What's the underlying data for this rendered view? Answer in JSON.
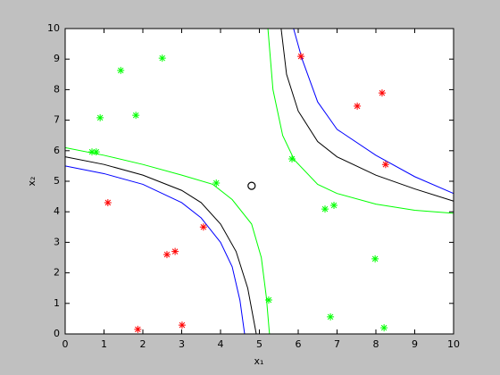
{
  "chart_data": {
    "type": "scatter",
    "xlabel": "x₁",
    "ylabel": "x₂",
    "xlim": [
      0,
      10
    ],
    "ylim": [
      0,
      10
    ],
    "xticks": [
      0,
      1,
      2,
      3,
      4,
      5,
      6,
      7,
      8,
      9,
      10
    ],
    "yticks": [
      0,
      1,
      2,
      3,
      4,
      5,
      6,
      7,
      8,
      9,
      10
    ],
    "grid": false,
    "series": [
      {
        "kind": "line",
        "color": "#000000",
        "x": [
          0,
          1,
          2,
          3,
          3.5,
          4,
          4.4,
          4.7,
          4.92,
          null,
          5.56,
          5.7,
          6,
          6.5,
          7,
          8,
          9,
          10
        ],
        "values": [
          5.8,
          5.55,
          5.2,
          4.7,
          4.3,
          3.6,
          2.7,
          1.5,
          0,
          null,
          10,
          8.5,
          7.3,
          6.3,
          5.8,
          5.2,
          4.75,
          4.35
        ]
      },
      {
        "kind": "line",
        "color": "#0000ff",
        "x": [
          0,
          1,
          2,
          3,
          3.5,
          4,
          4.3,
          4.5,
          4.62,
          null,
          5.88,
          6.1,
          6.5,
          7,
          8,
          9,
          10
        ],
        "values": [
          5.5,
          5.25,
          4.9,
          4.3,
          3.8,
          3.0,
          2.2,
          1.1,
          0,
          null,
          10,
          9,
          7.6,
          6.7,
          5.85,
          5.15,
          4.6
        ]
      },
      {
        "kind": "line",
        "color": "#00ff00",
        "x": [
          0,
          1,
          2,
          3,
          3.8,
          4.3,
          4.8,
          5.05,
          5.18,
          5.26,
          null,
          5.22,
          5.35,
          5.6,
          5.9,
          6.5,
          7,
          8,
          9,
          10
        ],
        "values": [
          6.1,
          5.85,
          5.55,
          5.2,
          4.9,
          4.4,
          3.6,
          2.5,
          1.2,
          0,
          null,
          10,
          8,
          6.5,
          5.7,
          4.9,
          4.6,
          4.25,
          4.05,
          3.95
        ]
      },
      {
        "kind": "points",
        "marker": "*",
        "color": "#00ff00",
        "x": [
          1.43,
          2.5,
          0.9,
          1.82,
          0.69,
          0.8,
          3.89,
          5.84,
          6.69,
          6.92,
          7.98,
          5.24,
          6.83,
          8.21
        ],
        "values": [
          8.63,
          9.03,
          7.08,
          7.16,
          5.96,
          5.96,
          4.94,
          5.73,
          4.09,
          4.21,
          2.46,
          1.11,
          0.56,
          0.2
        ]
      },
      {
        "kind": "points",
        "marker": "*",
        "color": "#ff0000",
        "x": [
          6.07,
          7.52,
          8.16,
          8.25,
          1.1,
          3.56,
          2.62,
          2.83,
          1.87,
          3.01
        ],
        "values": [
          9.09,
          7.46,
          7.89,
          5.55,
          4.3,
          3.5,
          2.6,
          2.7,
          0.15,
          0.29
        ]
      },
      {
        "kind": "points",
        "marker": "o",
        "color": "#000000",
        "x": [
          4.8
        ],
        "values": [
          4.85
        ]
      }
    ]
  }
}
